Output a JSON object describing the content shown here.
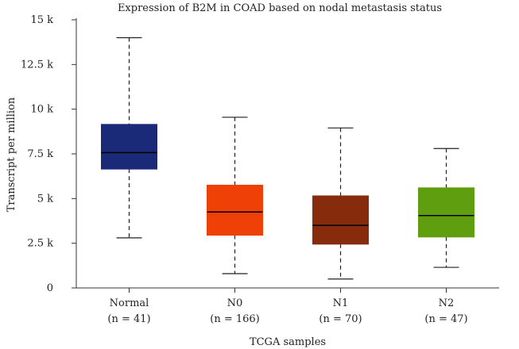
{
  "chart_data": {
    "type": "boxplot",
    "title": "Expression of B2M in COAD based on nodal metastasis status",
    "xlabel": "TCGA samples",
    "ylabel": "Transcript per million",
    "ylim": [
      0,
      15000
    ],
    "y_ticks": [
      {
        "value": 0,
        "label": "0"
      },
      {
        "value": 2500,
        "label": "2.5 k"
      },
      {
        "value": 5000,
        "label": "5 k"
      },
      {
        "value": 7500,
        "label": "7.5 k"
      },
      {
        "value": 10000,
        "label": "10 k"
      },
      {
        "value": 12500,
        "label": "12.5 k"
      },
      {
        "value": 15000,
        "label": "15 k"
      }
    ],
    "series": [
      {
        "name": "Normal",
        "n_label": "(n = 41)",
        "color": "#1b2a78",
        "min": 2800,
        "q1": 6650,
        "median": 7570,
        "q3": 9150,
        "max": 14000
      },
      {
        "name": "N0",
        "n_label": "(n = 166)",
        "color": "#ee4007",
        "min": 800,
        "q1": 2950,
        "median": 4250,
        "q3": 5750,
        "max": 9550
      },
      {
        "name": "N1",
        "n_label": "(n = 70)",
        "color": "#862c0d",
        "min": 500,
        "q1": 2450,
        "median": 3500,
        "q3": 5150,
        "max": 8950
      },
      {
        "name": "N2",
        "n_label": "(n = 47)",
        "color": "#5f9e0f",
        "min": 1150,
        "q1": 2850,
        "median": 4050,
        "q3": 5600,
        "max": 7800
      }
    ]
  }
}
